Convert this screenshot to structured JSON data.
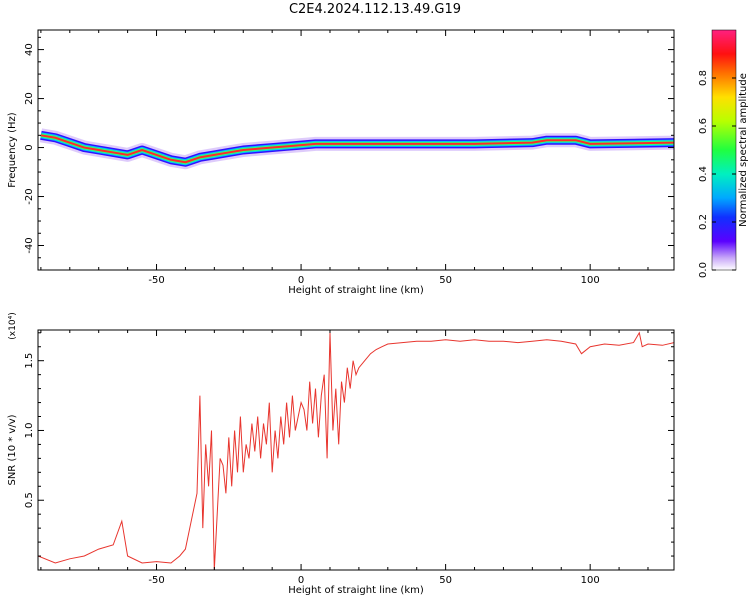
{
  "title": "C2E4.2024.112.13.49.G19",
  "chart_data": [
    {
      "type": "heatmap",
      "xlabel": "Height of straight line (km)",
      "ylabel": "Frequency (Hz)",
      "xlim": [
        -91,
        129
      ],
      "ylim": [
        -50,
        48
      ],
      "xticks": [
        -50,
        0,
        50,
        100
      ],
      "yticks": [
        -40,
        -20,
        0,
        20,
        40
      ],
      "colorbar": {
        "label": "Normalized spectral amplitude",
        "range": [
          0,
          1
        ],
        "ticks": [
          0.0,
          0.2,
          0.4,
          0.6,
          0.8
        ],
        "tick_labels": [
          "0.0",
          "0.2",
          "0.4",
          "0.6",
          "0.8"
        ]
      },
      "ridge": {
        "x": [
          -90,
          -85,
          -80,
          -75,
          -70,
          -65,
          -60,
          -55,
          -50,
          -45,
          -40,
          -35,
          -30,
          -25,
          -20,
          -15,
          -10,
          -5,
          0,
          5,
          10,
          20,
          40,
          60,
          80,
          85,
          95,
          100,
          129
        ],
        "y": [
          5,
          4,
          2,
          0,
          -1,
          -2,
          -3,
          -1,
          -3,
          -5,
          -6,
          -4,
          -3,
          -2,
          -1,
          -0.5,
          0,
          0.5,
          1,
          1.5,
          1.5,
          1.5,
          1.5,
          1.5,
          2,
          3,
          3,
          1.5,
          2
        ]
      }
    },
    {
      "type": "line",
      "xlabel": "Height of straight line (km)",
      "ylabel": "SNR (10 * v/v)",
      "y_multiplier": "(x10⁴)",
      "xlim": [
        -91,
        129
      ],
      "ylim": [
        0,
        1.72
      ],
      "xticks": [
        -50,
        0,
        50,
        100
      ],
      "yticks": [
        0.5,
        1.0,
        1.5
      ],
      "ytick_labels": [
        "0.5",
        "1.0",
        "1.5"
      ],
      "color": "#e8352e",
      "series": [
        {
          "x": [
            -91,
            -85,
            -80,
            -75,
            -70,
            -65,
            -62,
            -60,
            -55,
            -50,
            -45,
            -42,
            -40,
            -38,
            -36,
            -35,
            -34,
            -33,
            -32,
            -31,
            -30,
            -29,
            -28,
            -27,
            -26,
            -25,
            -24,
            -23,
            -22,
            -21,
            -20,
            -19,
            -18,
            -17,
            -16,
            -15,
            -14,
            -13,
            -12,
            -11,
            -10,
            -9,
            -8,
            -7,
            -6,
            -5,
            -4,
            -3,
            -2,
            -1,
            0,
            1,
            2,
            3,
            4,
            5,
            6,
            7,
            8,
            9,
            10,
            11,
            12,
            13,
            14,
            15,
            16,
            17,
            18,
            19,
            20,
            22,
            24,
            26,
            28,
            30,
            35,
            40,
            45,
            50,
            55,
            60,
            65,
            70,
            75,
            80,
            85,
            90,
            95,
            97,
            100,
            105,
            110,
            115,
            117,
            118,
            120,
            125,
            129
          ],
          "y": [
            0.1,
            0.05,
            0.08,
            0.1,
            0.15,
            0.18,
            0.35,
            0.1,
            0.05,
            0.06,
            0.05,
            0.1,
            0.15,
            0.35,
            0.55,
            1.25,
            0.3,
            0.9,
            0.6,
            1.0,
            0.0,
            0.4,
            0.8,
            0.75,
            0.55,
            0.95,
            0.6,
            1.0,
            0.7,
            1.1,
            0.7,
            0.9,
            0.8,
            1.05,
            0.85,
            1.1,
            0.8,
            1.05,
            0.9,
            1.2,
            0.7,
            1.0,
            0.8,
            1.1,
            0.9,
            1.2,
            0.95,
            1.25,
            1.0,
            1.1,
            1.2,
            1.15,
            1.0,
            1.35,
            1.05,
            1.3,
            0.95,
            1.25,
            1.4,
            0.8,
            1.7,
            1.0,
            1.3,
            0.9,
            1.35,
            1.2,
            1.45,
            1.3,
            1.5,
            1.4,
            1.45,
            1.5,
            1.55,
            1.58,
            1.6,
            1.62,
            1.63,
            1.64,
            1.64,
            1.65,
            1.64,
            1.65,
            1.64,
            1.64,
            1.63,
            1.64,
            1.65,
            1.64,
            1.62,
            1.55,
            1.6,
            1.62,
            1.61,
            1.63,
            1.7,
            1.6,
            1.62,
            1.61,
            1.63
          ]
        }
      ]
    }
  ]
}
